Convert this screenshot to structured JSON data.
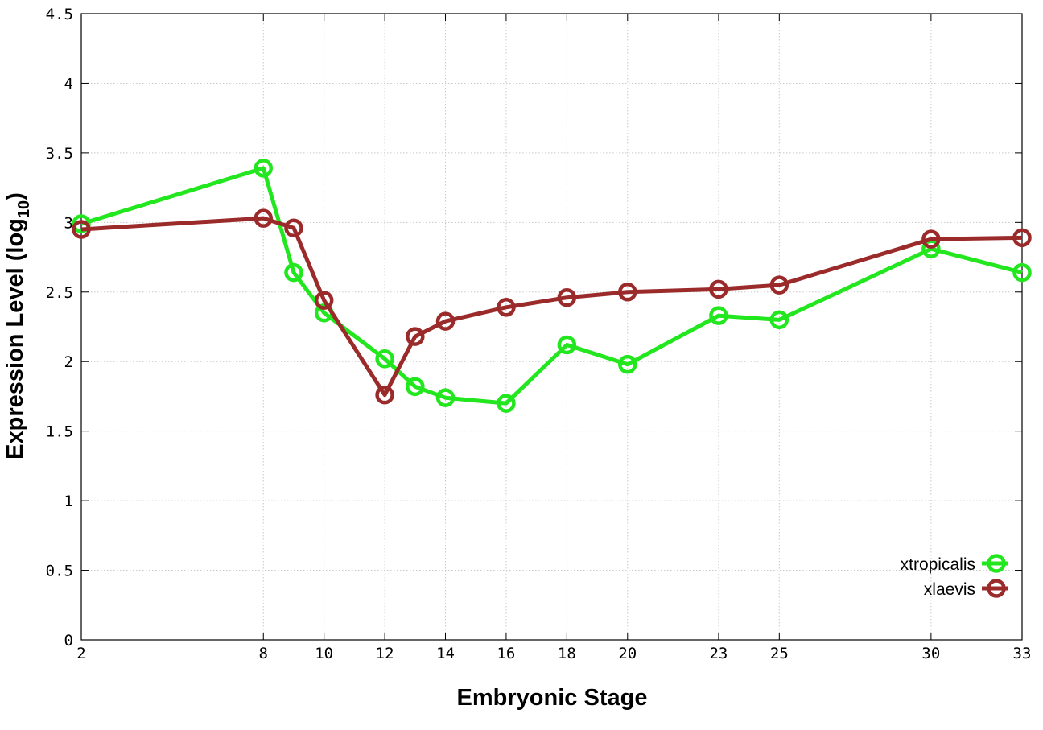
{
  "chart_data": {
    "type": "line",
    "title": "",
    "xlabel": "Embryonic Stage",
    "ylabel": "Expression Level (log",
    "ylabel_subscript": "10",
    "ylabel_suffix": ")",
    "x_ticks": [
      "2",
      "8",
      "10",
      "12",
      "14",
      "16",
      "18",
      "20",
      "23",
      "25",
      "30",
      "33"
    ],
    "y_ticks": [
      "0",
      "0.5",
      "1",
      "1.5",
      "2",
      "2.5",
      "3",
      "3.5",
      "4",
      "4.5"
    ],
    "xlim": [
      2,
      33
    ],
    "ylim": [
      0,
      4.5
    ],
    "grid": true,
    "legend_position": "bottom-right",
    "series": [
      {
        "name": "xtropicalis",
        "color": "#22e61e",
        "x": [
          2,
          8,
          9,
          10,
          12,
          13,
          14,
          16,
          18,
          20,
          23,
          25,
          30,
          33
        ],
        "y": [
          2.99,
          3.39,
          2.64,
          2.35,
          2.02,
          1.82,
          1.74,
          1.7,
          2.12,
          1.98,
          2.33,
          2.3,
          2.81,
          2.64
        ]
      },
      {
        "name": "xlaevis",
        "color": "#9b2a2a",
        "x": [
          2,
          8,
          9,
          10,
          12,
          13,
          14,
          16,
          18,
          20,
          23,
          25,
          30,
          33
        ],
        "y": [
          2.95,
          3.03,
          2.96,
          2.44,
          1.76,
          2.18,
          2.29,
          2.39,
          2.46,
          2.5,
          2.52,
          2.55,
          2.88,
          2.89
        ]
      }
    ]
  }
}
